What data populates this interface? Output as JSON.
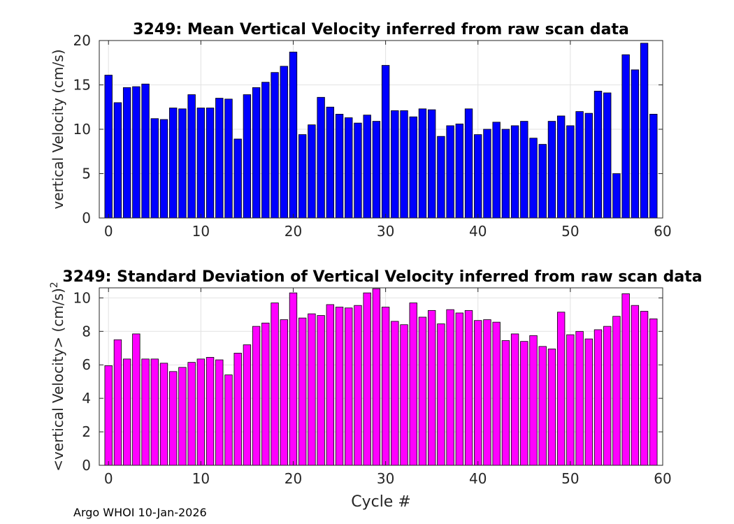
{
  "chart_data": [
    {
      "type": "bar",
      "title": "3249: Mean Vertical Velocity inferred from raw scan data",
      "xlabel": "",
      "ylabel": "vertical Velocity (cm/s)",
      "xlim": [
        -1,
        60
      ],
      "ylim": [
        0,
        20
      ],
      "xticks": [
        0,
        10,
        20,
        30,
        40,
        50,
        60
      ],
      "yticks": [
        0,
        5,
        10,
        15,
        20
      ],
      "grid": true,
      "bar_color": "#0000ff",
      "x": [
        0,
        1,
        2,
        3,
        4,
        5,
        6,
        7,
        8,
        9,
        10,
        11,
        12,
        13,
        14,
        15,
        16,
        17,
        18,
        19,
        20,
        21,
        22,
        23,
        24,
        25,
        26,
        27,
        28,
        29,
        30,
        31,
        32,
        33,
        34,
        35,
        36,
        37,
        38,
        39,
        40,
        41,
        42,
        43,
        44,
        45,
        46,
        47,
        48,
        49,
        50,
        51,
        52,
        53,
        54,
        55,
        56,
        57,
        58,
        59
      ],
      "values": [
        16.1,
        13.0,
        14.7,
        14.8,
        15.1,
        11.2,
        11.1,
        12.4,
        12.3,
        13.9,
        12.4,
        12.4,
        13.5,
        13.4,
        8.9,
        13.9,
        14.7,
        15.3,
        16.4,
        17.1,
        18.7,
        9.4,
        10.5,
        13.6,
        12.5,
        11.7,
        11.3,
        10.7,
        11.6,
        10.9,
        17.2,
        12.1,
        12.1,
        11.4,
        12.3,
        12.2,
        9.2,
        10.4,
        10.6,
        12.3,
        9.4,
        10.0,
        10.8,
        10.0,
        10.4,
        10.9,
        9.0,
        8.3,
        10.9,
        11.5,
        10.4,
        12.0,
        11.8,
        14.3,
        14.1,
        5.0,
        18.4,
        16.7,
        19.7,
        11.7
      ]
    },
    {
      "type": "bar",
      "title": "3249: Standard Deviation of Vertical Velocity inferred from raw scan data",
      "xlabel": "Cycle #",
      "ylabel": "<vertical Velocity> (cm/s)",
      "ylabel_superscript": "2",
      "xlim": [
        -1,
        60
      ],
      "ylim": [
        0,
        10.6
      ],
      "xticks": [
        0,
        10,
        20,
        30,
        40,
        50,
        60
      ],
      "yticks": [
        0,
        2,
        4,
        6,
        8,
        10
      ],
      "grid": true,
      "bar_color": "#ff00ff",
      "x": [
        0,
        1,
        2,
        3,
        4,
        5,
        6,
        7,
        8,
        9,
        10,
        11,
        12,
        13,
        14,
        15,
        16,
        17,
        18,
        19,
        20,
        21,
        22,
        23,
        24,
        25,
        26,
        27,
        28,
        29,
        30,
        31,
        32,
        33,
        34,
        35,
        36,
        37,
        38,
        39,
        40,
        41,
        42,
        43,
        44,
        45,
        46,
        47,
        48,
        49,
        50,
        51,
        52,
        53,
        54,
        55,
        56,
        57,
        58,
        59
      ],
      "values": [
        5.95,
        7.5,
        6.35,
        7.85,
        6.35,
        6.35,
        6.1,
        5.6,
        5.85,
        6.15,
        6.35,
        6.45,
        6.3,
        5.4,
        6.7,
        7.2,
        8.3,
        8.5,
        9.7,
        8.7,
        10.3,
        8.8,
        9.05,
        8.95,
        9.6,
        9.45,
        9.4,
        9.55,
        10.3,
        10.55,
        9.45,
        8.6,
        8.4,
        9.7,
        8.85,
        9.25,
        8.45,
        9.3,
        9.1,
        9.25,
        8.65,
        8.7,
        8.55,
        7.45,
        7.85,
        7.4,
        7.75,
        7.1,
        6.95,
        9.15,
        7.8,
        8.0,
        7.55,
        8.1,
        8.3,
        8.9,
        10.25,
        9.55,
        9.2,
        8.75
      ]
    }
  ],
  "footer": "Argo WHOI 10-Jan-2026"
}
